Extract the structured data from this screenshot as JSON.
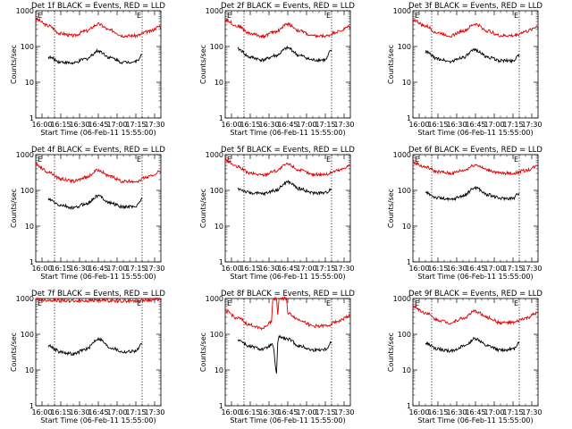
{
  "colors": {
    "events": "#000000",
    "lld": "#e00000",
    "frame": "#000000",
    "background": "#ffffff"
  },
  "shared": {
    "xlabel": "Start Time (06-Feb-11 15:55:00)",
    "ylabel": "Counts/sec",
    "x_ticks": [
      "16:00",
      "16:15",
      "16:30",
      "16:45",
      "17:00",
      "17:15",
      "17:30"
    ],
    "y_ticks": [
      "1",
      "10",
      "100",
      "1000"
    ],
    "marker": "E"
  },
  "chart_data": [
    {
      "type": "line",
      "title": "Det 1f BLACK = Events, RED = LLD",
      "xlabel": "Start Time (06-Feb-11 15:55:00)",
      "ylabel": "Counts/sec",
      "yscale": "log",
      "ylim": [
        1,
        1000
      ],
      "xlim": [
        "15:55",
        "17:35"
      ],
      "x_ticks": [
        "16:00",
        "16:15",
        "16:30",
        "16:45",
        "17:00",
        "17:15",
        "17:30"
      ],
      "vlines": [
        "16:10",
        "17:20"
      ],
      "series": [
        {
          "name": "RED = LLD",
          "x": [
            "15:55",
            "16:05",
            "16:15",
            "16:25",
            "16:35",
            "16:45",
            "16:55",
            "17:05",
            "17:15",
            "17:25",
            "17:35"
          ],
          "y": [
            580,
            380,
            230,
            200,
            270,
            420,
            280,
            200,
            200,
            260,
            370
          ]
        },
        {
          "name": "BLACK = Events",
          "x": [
            "16:05",
            "16:15",
            "16:25",
            "16:35",
            "16:45",
            "16:55",
            "17:05",
            "17:15",
            "17:20"
          ],
          "y": [
            50,
            37,
            34,
            45,
            75,
            48,
            36,
            38,
            58
          ]
        }
      ]
    },
    {
      "type": "line",
      "title": "Det 2f BLACK = Events, RED = LLD",
      "xlabel": "Start Time (06-Feb-11 15:55:00)",
      "ylabel": "Counts/sec",
      "yscale": "log",
      "ylim": [
        1,
        1000
      ],
      "xlim": [
        "15:55",
        "17:35"
      ],
      "x_ticks": [
        "16:00",
        "16:15",
        "16:30",
        "16:45",
        "17:00",
        "17:15",
        "17:30"
      ],
      "vlines": [
        "16:10",
        "17:20"
      ],
      "series": [
        {
          "name": "RED = LLD",
          "x": [
            "15:55",
            "16:05",
            "16:15",
            "16:25",
            "16:35",
            "16:45",
            "16:55",
            "17:05",
            "17:15",
            "17:25",
            "17:35"
          ],
          "y": [
            560,
            370,
            230,
            195,
            260,
            420,
            270,
            195,
            195,
            260,
            360
          ]
        },
        {
          "name": "BLACK = Events",
          "x": [
            "16:05",
            "16:15",
            "16:25",
            "16:35",
            "16:45",
            "16:55",
            "17:05",
            "17:15",
            "17:20"
          ],
          "y": [
            85,
            50,
            42,
            55,
            90,
            55,
            42,
            42,
            80
          ]
        }
      ]
    },
    {
      "type": "line",
      "title": "Det 3f BLACK = Events, RED = LLD",
      "xlabel": "Start Time (06-Feb-11 15:55:00)",
      "ylabel": "Counts/sec",
      "yscale": "log",
      "ylim": [
        1,
        1000
      ],
      "xlim": [
        "15:55",
        "17:35"
      ],
      "x_ticks": [
        "16:00",
        "16:15",
        "16:30",
        "16:45",
        "17:00",
        "17:15",
        "17:30"
      ],
      "vlines": [
        "16:10",
        "17:20"
      ],
      "series": [
        {
          "name": "RED = LLD",
          "x": [
            "15:55",
            "16:05",
            "16:15",
            "16:25",
            "16:35",
            "16:45",
            "16:55",
            "17:05",
            "17:15",
            "17:25",
            "17:35"
          ],
          "y": [
            560,
            370,
            240,
            200,
            270,
            420,
            270,
            200,
            200,
            260,
            360
          ]
        },
        {
          "name": "BLACK = Events",
          "x": [
            "16:05",
            "16:15",
            "16:25",
            "16:35",
            "16:45",
            "16:55",
            "17:05",
            "17:15",
            "17:20"
          ],
          "y": [
            70,
            45,
            38,
            50,
            80,
            50,
            40,
            40,
            60
          ]
        }
      ]
    },
    {
      "type": "line",
      "title": "Det 4f BLACK = Events, RED = LLD",
      "xlabel": "Start Time (06-Feb-11 15:55:00)",
      "ylabel": "Counts/sec",
      "yscale": "log",
      "ylim": [
        1,
        1000
      ],
      "xlim": [
        "15:55",
        "17:35"
      ],
      "x_ticks": [
        "16:00",
        "16:15",
        "16:30",
        "16:45",
        "17:00",
        "17:15",
        "17:30"
      ],
      "vlines": [
        "16:10",
        "17:20"
      ],
      "series": [
        {
          "name": "RED = LLD",
          "x": [
            "15:55",
            "16:05",
            "16:15",
            "16:25",
            "16:35",
            "16:45",
            "16:55",
            "17:05",
            "17:15",
            "17:25",
            "17:35"
          ],
          "y": [
            520,
            330,
            210,
            180,
            230,
            370,
            240,
            175,
            180,
            240,
            340
          ]
        },
        {
          "name": "BLACK = Events",
          "x": [
            "16:05",
            "16:15",
            "16:25",
            "16:35",
            "16:45",
            "16:55",
            "17:05",
            "17:15",
            "17:20"
          ],
          "y": [
            55,
            38,
            32,
            42,
            70,
            44,
            34,
            36,
            58
          ]
        }
      ]
    },
    {
      "type": "line",
      "title": "Det 5f BLACK = Events, RED = LLD",
      "xlabel": "Start Time (06-Feb-11 15:55:00)",
      "ylabel": "Counts/sec",
      "yscale": "log",
      "ylim": [
        1,
        1000
      ],
      "xlim": [
        "15:55",
        "17:35"
      ],
      "x_ticks": [
        "16:00",
        "16:15",
        "16:30",
        "16:45",
        "17:00",
        "17:15",
        "17:30"
      ],
      "vlines": [
        "16:10",
        "17:20"
      ],
      "series": [
        {
          "name": "RED = LLD",
          "x": [
            "15:55",
            "16:05",
            "16:15",
            "16:25",
            "16:35",
            "16:45",
            "16:55",
            "17:05",
            "17:15",
            "17:25",
            "17:35"
          ],
          "y": [
            700,
            450,
            300,
            270,
            350,
            540,
            360,
            280,
            280,
            360,
            500
          ]
        },
        {
          "name": "BLACK = Events",
          "x": [
            "16:05",
            "16:15",
            "16:25",
            "16:35",
            "16:45",
            "16:55",
            "17:05",
            "17:15",
            "17:20"
          ],
          "y": [
            110,
            85,
            80,
            100,
            170,
            110,
            85,
            85,
            110
          ]
        }
      ]
    },
    {
      "type": "line",
      "title": "Det 6f BLACK = Events, RED = LLD",
      "xlabel": "Start Time (06-Feb-11 15:55:00)",
      "ylabel": "Counts/sec",
      "yscale": "log",
      "ylim": [
        1,
        1000
      ],
      "xlim": [
        "15:55",
        "17:35"
      ],
      "x_ticks": [
        "16:00",
        "16:15",
        "16:30",
        "16:45",
        "17:00",
        "17:15",
        "17:30"
      ],
      "vlines": [
        "16:10",
        "17:20"
      ],
      "series": [
        {
          "name": "RED = LLD",
          "x": [
            "15:55",
            "16:05",
            "16:15",
            "16:25",
            "16:35",
            "16:45",
            "16:55",
            "17:05",
            "17:15",
            "17:25",
            "17:35"
          ],
          "y": [
            600,
            450,
            330,
            300,
            360,
            520,
            370,
            300,
            300,
            360,
            480
          ]
        },
        {
          "name": "BLACK = Events",
          "x": [
            "16:05",
            "16:15",
            "16:25",
            "16:35",
            "16:45",
            "16:55",
            "17:05",
            "17:15",
            "17:20"
          ],
          "y": [
            85,
            62,
            55,
            70,
            120,
            75,
            60,
            60,
            85
          ]
        }
      ]
    },
    {
      "type": "line",
      "title": "Det 7f BLACK = Events, RED = LLD",
      "xlabel": "Start Time (06-Feb-11 15:55:00)",
      "ylabel": "Counts/sec",
      "yscale": "log",
      "ylim": [
        1,
        1000
      ],
      "xlim": [
        "15:55",
        "17:35"
      ],
      "x_ticks": [
        "16:00",
        "16:15",
        "16:30",
        "16:45",
        "17:00",
        "17:15",
        "17:30"
      ],
      "vlines": [
        "16:10",
        "17:20"
      ],
      "series": [
        {
          "name": "RED = LLD",
          "x": [
            "15:55",
            "16:05",
            "16:15",
            "16:25",
            "16:35",
            "16:45",
            "16:55",
            "17:05",
            "17:15",
            "17:25",
            "17:35"
          ],
          "y": [
            950,
            900,
            880,
            850,
            870,
            900,
            880,
            850,
            860,
            900,
            950
          ]
        },
        {
          "name": "BLACK = Events",
          "x": [
            "16:05",
            "16:15",
            "16:25",
            "16:35",
            "16:45",
            "16:55",
            "17:05",
            "17:15",
            "17:20"
          ],
          "y": [
            48,
            32,
            28,
            38,
            75,
            42,
            32,
            34,
            52
          ]
        }
      ]
    },
    {
      "type": "line",
      "title": "Det 8f BLACK = Events, RED = LLD",
      "xlabel": "Start Time (06-Feb-11 15:55:00)",
      "ylabel": "Counts/sec",
      "yscale": "log",
      "ylim": [
        1,
        1000
      ],
      "xlim": [
        "15:55",
        "17:35"
      ],
      "x_ticks": [
        "16:00",
        "16:15",
        "16:30",
        "16:45",
        "17:00",
        "17:15",
        "17:30"
      ],
      "vlines": [
        "16:10",
        "17:20"
      ],
      "series": [
        {
          "name": "RED = LLD",
          "x": [
            "15:55",
            "16:05",
            "16:15",
            "16:25",
            "16:32",
            "16:33",
            "16:36",
            "16:37",
            "16:38",
            "16:39",
            "16:44",
            "16:45",
            "16:55",
            "17:05",
            "17:15",
            "17:25",
            "17:35"
          ],
          "y": [
            450,
            280,
            180,
            150,
            220,
            1000,
            1000,
            350,
            1000,
            1000,
            1000,
            380,
            250,
            170,
            170,
            230,
            330
          ]
        },
        {
          "name": "BLACK = Events",
          "x": [
            "16:05",
            "16:15",
            "16:25",
            "16:33",
            "16:36",
            "16:37",
            "16:38",
            "16:40",
            "16:45",
            "16:55",
            "17:05",
            "17:15",
            "17:20"
          ],
          "y": [
            70,
            45,
            38,
            50,
            8,
            60,
            90,
            80,
            72,
            46,
            36,
            38,
            60
          ]
        }
      ]
    },
    {
      "type": "line",
      "title": "Det 9f BLACK = Events, RED = LLD",
      "xlabel": "Start Time (06-Feb-11 15:55:00)",
      "ylabel": "Counts/sec",
      "yscale": "log",
      "ylim": [
        1,
        1000
      ],
      "xlim": [
        "15:55",
        "17:35"
      ],
      "x_ticks": [
        "16:00",
        "16:15",
        "16:30",
        "16:45",
        "17:00",
        "17:15",
        "17:30"
      ],
      "vlines": [
        "16:10",
        "17:20"
      ],
      "series": [
        {
          "name": "RED = LLD",
          "x": [
            "15:55",
            "16:05",
            "16:15",
            "16:25",
            "16:35",
            "16:45",
            "16:55",
            "17:05",
            "17:15",
            "17:25",
            "17:35"
          ],
          "y": [
            600,
            400,
            250,
            210,
            280,
            440,
            290,
            210,
            210,
            280,
            390
          ]
        },
        {
          "name": "BLACK = Events",
          "x": [
            "16:05",
            "16:15",
            "16:25",
            "16:35",
            "16:45",
            "16:55",
            "17:05",
            "17:15",
            "17:20"
          ],
          "y": [
            55,
            38,
            34,
            45,
            75,
            46,
            36,
            38,
            60
          ]
        }
      ]
    }
  ]
}
